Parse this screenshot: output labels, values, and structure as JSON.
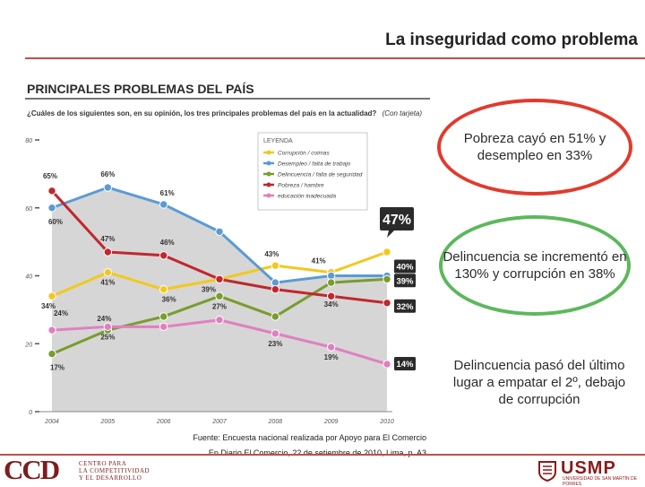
{
  "slide_title": "La inseguridad como problema",
  "callouts": [
    "Pobreza cayó en 51% y desempleo en 33%",
    "Delincuencia se incrementó en 130% y corrupción en 38%",
    "Delincuencia pasó del último lugar a empatar el 2º, debajo de corrupción"
  ],
  "source_lines": [
    "Fuente: Encuesta nacional realizada por Apoyo para El Comercio",
    "En Diario El Comercio, 22 de setiembre de 2010, Lima, p. A3"
  ],
  "logos": {
    "ccd_mark": "CCD",
    "ccd_subtitle": [
      "CENTRO PARA",
      "LA COMPETITIVIDAD",
      "Y EL DESARROLLO"
    ],
    "usmp_mark": "USMP",
    "usmp_subtitle": "UNIVERSIDAD DE SAN MARTÍN DE PORRES"
  },
  "chart_data": {
    "type": "line",
    "title": "PRINCIPALES PROBLEMAS DEL PAÍS",
    "subtitle": "¿Cuáles de los siguientes son, en su opinión, los tres principales problemas del país en la actualidad?",
    "subtitle_note": "(Con tarjeta)",
    "legend_title": "LEYENDA",
    "legend_placement": "top-center",
    "x": [
      "2004",
      "2005",
      "2006",
      "2007",
      "2008",
      "2009",
      "2010"
    ],
    "y_ticks": [
      "0",
      "20",
      "40",
      "60",
      "80"
    ],
    "ylim": [
      0,
      80
    ],
    "series": [
      {
        "name": "Corrupción / coimas",
        "color": "#f2c81e",
        "values": [
          34,
          41,
          36,
          39,
          43,
          41,
          47
        ],
        "labels": [
          "34%",
          "41%",
          "36%",
          "39%",
          "43%",
          "41%",
          "47%"
        ]
      },
      {
        "name": "Desempleo / falta de trabajo",
        "color": "#5b9bd5",
        "values": [
          60,
          66,
          61,
          53,
          38,
          40,
          40
        ],
        "labels": [
          "60%",
          "66%",
          "61%",
          "",
          "",
          "",
          "40%"
        ]
      },
      {
        "name": "Delincuencia / falta de seguridad",
        "color": "#7a9c2e",
        "values": [
          17,
          24,
          28,
          34,
          28,
          38,
          39
        ],
        "labels": [
          "17%",
          "24%",
          "",
          "",
          "",
          "",
          "39%"
        ]
      },
      {
        "name": "Pobreza / hambre",
        "color": "#c0282d",
        "values": [
          65,
          47,
          46,
          39,
          36,
          34,
          32
        ],
        "labels": [
          "65%",
          "47%",
          "46%",
          "",
          "",
          "34%",
          "32%"
        ]
      },
      {
        "name": "educación inadecuada",
        "color": "#e07fc0",
        "values": [
          24,
          25,
          25,
          27,
          23,
          19,
          14
        ],
        "labels": [
          "24%",
          "25%",
          "",
          "27%",
          "23%",
          "19%",
          "14%"
        ]
      }
    ],
    "area_series": "Desempleo / falta de trabajo",
    "highlight_labels": [
      "47%",
      "40%",
      "39%",
      "32%",
      "14%"
    ]
  }
}
